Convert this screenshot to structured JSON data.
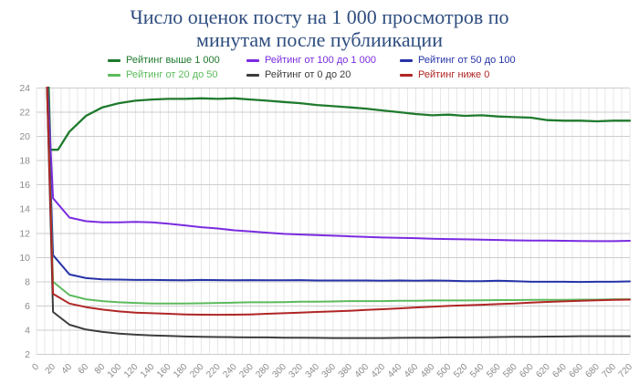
{
  "title": {
    "line1": "Число оценок посту на 1 000 просмотров по",
    "line2": "минутам после публиикации"
  },
  "colors": {
    "title": "#2e4d7f",
    "tick_labels": "#8c8c8c",
    "grid_vertical": "#e7e7e7",
    "grid_horizontal": "#cdcdcd",
    "background": "#ffffff"
  },
  "legend": {
    "items": [
      {
        "label": "Рейтинг выше 1 000",
        "color": "#1f7a2d"
      },
      {
        "label": "Рейтинг от 100 до 1 000",
        "color": "#7a2be0"
      },
      {
        "label": "Рейтинг от 50 до 100",
        "color": "#2633a8"
      },
      {
        "label": "Рейтинг от 20 до 50",
        "color": "#5cbb5c"
      },
      {
        "label": "Рейтинг от 0 до 20",
        "color": "#3d3d3d"
      },
      {
        "label": "Рейтинг ниже 0",
        "color": "#b02525"
      }
    ]
  },
  "chart_data": {
    "type": "line",
    "title": "Число оценок посту на 1 000 просмотров по минутам после публиикации",
    "xlabel": "",
    "ylabel": "",
    "xlim": [
      0,
      720
    ],
    "ylim": [
      2,
      24
    ],
    "x_ticks": [
      0,
      20,
      40,
      60,
      80,
      100,
      120,
      140,
      160,
      180,
      200,
      220,
      240,
      260,
      280,
      300,
      320,
      340,
      360,
      380,
      400,
      420,
      440,
      460,
      480,
      500,
      520,
      540,
      560,
      580,
      600,
      620,
      640,
      660,
      680,
      700,
      720
    ],
    "y_ticks": [
      2,
      4,
      6,
      8,
      10,
      12,
      14,
      16,
      18,
      20,
      22,
      24
    ],
    "x_grid_step": 10,
    "grid": true,
    "legend_position": "top",
    "note": "all series enter from above the chart top near x=10-15; values above ylim are clipped",
    "series": [
      {
        "name": "Рейтинг выше 1 000",
        "color": "#1f7a2d",
        "width": 2.3,
        "x": [
          14,
          17,
          26,
          40,
          60,
          80,
          100,
          120,
          140,
          160,
          180,
          200,
          220,
          240,
          260,
          280,
          300,
          320,
          340,
          360,
          380,
          400,
          420,
          440,
          460,
          480,
          500,
          520,
          540,
          560,
          580,
          600,
          620,
          640,
          660,
          680,
          700,
          720
        ],
        "y": [
          26,
          18.9,
          18.9,
          20.4,
          21.7,
          22.4,
          22.75,
          22.95,
          23.05,
          23.1,
          23.1,
          23.15,
          23.1,
          23.15,
          23.05,
          22.95,
          22.85,
          22.75,
          22.6,
          22.5,
          22.4,
          22.3,
          22.15,
          22.0,
          21.85,
          21.75,
          21.8,
          21.7,
          21.75,
          21.65,
          21.6,
          21.55,
          21.35,
          21.3,
          21.3,
          21.25,
          21.3,
          21.3
        ]
      },
      {
        "name": "Рейтинг от 100 до 1 000",
        "color": "#7a2be0",
        "width": 2,
        "x": [
          12,
          20,
          40,
          60,
          80,
          100,
          120,
          140,
          160,
          180,
          200,
          220,
          240,
          260,
          280,
          300,
          320,
          340,
          360,
          380,
          400,
          420,
          440,
          460,
          480,
          500,
          520,
          540,
          560,
          580,
          600,
          620,
          640,
          660,
          680,
          700,
          720
        ],
        "y": [
          26,
          14.9,
          13.3,
          13.0,
          12.9,
          12.9,
          12.95,
          12.9,
          12.8,
          12.65,
          12.5,
          12.4,
          12.25,
          12.15,
          12.05,
          11.95,
          11.9,
          11.85,
          11.8,
          11.75,
          11.7,
          11.65,
          11.62,
          11.6,
          11.55,
          11.52,
          11.5,
          11.48,
          11.45,
          11.42,
          11.4,
          11.4,
          11.38,
          11.36,
          11.35,
          11.35,
          11.38
        ]
      },
      {
        "name": "Рейтинг от 50 до 100",
        "color": "#2633a8",
        "width": 2,
        "x": [
          12,
          20,
          40,
          60,
          80,
          100,
          120,
          140,
          160,
          180,
          200,
          220,
          240,
          260,
          280,
          300,
          320,
          340,
          360,
          380,
          400,
          420,
          440,
          460,
          480,
          500,
          520,
          540,
          560,
          580,
          600,
          620,
          640,
          660,
          680,
          700,
          720
        ],
        "y": [
          26,
          10.2,
          8.6,
          8.3,
          8.2,
          8.18,
          8.15,
          8.15,
          8.13,
          8.12,
          8.15,
          8.13,
          8.12,
          8.13,
          8.12,
          8.12,
          8.13,
          8.1,
          8.1,
          8.1,
          8.1,
          8.08,
          8.1,
          8.08,
          8.1,
          8.08,
          8.05,
          8.05,
          8.08,
          8.05,
          8.0,
          8.0,
          8.0,
          7.98,
          8.0,
          8.0,
          8.03
        ]
      },
      {
        "name": "Рейтинг от 20 до 50",
        "color": "#5cbb5c",
        "width": 2,
        "x": [
          12,
          20,
          40,
          60,
          80,
          100,
          120,
          140,
          160,
          180,
          200,
          220,
          240,
          260,
          280,
          300,
          320,
          340,
          360,
          380,
          400,
          420,
          440,
          460,
          480,
          500,
          520,
          540,
          560,
          580,
          600,
          620,
          640,
          660,
          680,
          700,
          720
        ],
        "y": [
          26,
          8.0,
          6.9,
          6.55,
          6.4,
          6.3,
          6.25,
          6.2,
          6.2,
          6.2,
          6.22,
          6.25,
          6.27,
          6.3,
          6.3,
          6.32,
          6.35,
          6.35,
          6.37,
          6.4,
          6.4,
          6.4,
          6.42,
          6.42,
          6.45,
          6.45,
          6.45,
          6.47,
          6.48,
          6.48,
          6.5,
          6.5,
          6.5,
          6.52,
          6.52,
          6.55,
          6.55
        ]
      },
      {
        "name": "Рейтинг от 0 до 20",
        "color": "#3d3d3d",
        "width": 2,
        "x": [
          12,
          20,
          40,
          60,
          80,
          100,
          120,
          140,
          160,
          180,
          200,
          220,
          240,
          260,
          280,
          300,
          320,
          340,
          360,
          380,
          400,
          420,
          440,
          460,
          480,
          500,
          520,
          540,
          560,
          580,
          600,
          620,
          640,
          660,
          680,
          700,
          720
        ],
        "y": [
          26,
          5.5,
          4.45,
          4.05,
          3.85,
          3.72,
          3.63,
          3.57,
          3.52,
          3.48,
          3.45,
          3.43,
          3.42,
          3.4,
          3.4,
          3.38,
          3.37,
          3.36,
          3.35,
          3.35,
          3.35,
          3.35,
          3.36,
          3.37,
          3.38,
          3.4,
          3.4,
          3.42,
          3.43,
          3.45,
          3.45,
          3.47,
          3.48,
          3.5,
          3.5,
          3.5,
          3.5
        ]
      },
      {
        "name": "Рейтинг ниже 0",
        "color": "#b02525",
        "width": 2,
        "x": [
          12,
          20,
          40,
          60,
          80,
          100,
          120,
          140,
          160,
          180,
          200,
          220,
          240,
          260,
          280,
          300,
          320,
          340,
          360,
          380,
          400,
          420,
          440,
          460,
          480,
          500,
          520,
          540,
          560,
          580,
          600,
          620,
          640,
          660,
          680,
          700,
          720
        ],
        "y": [
          26,
          7.0,
          6.2,
          5.9,
          5.7,
          5.55,
          5.45,
          5.4,
          5.35,
          5.3,
          5.28,
          5.27,
          5.28,
          5.3,
          5.35,
          5.4,
          5.45,
          5.5,
          5.55,
          5.6,
          5.67,
          5.73,
          5.8,
          5.87,
          5.93,
          6.0,
          6.05,
          6.1,
          6.15,
          6.2,
          6.28,
          6.33,
          6.38,
          6.43,
          6.47,
          6.5,
          6.52
        ]
      }
    ]
  }
}
